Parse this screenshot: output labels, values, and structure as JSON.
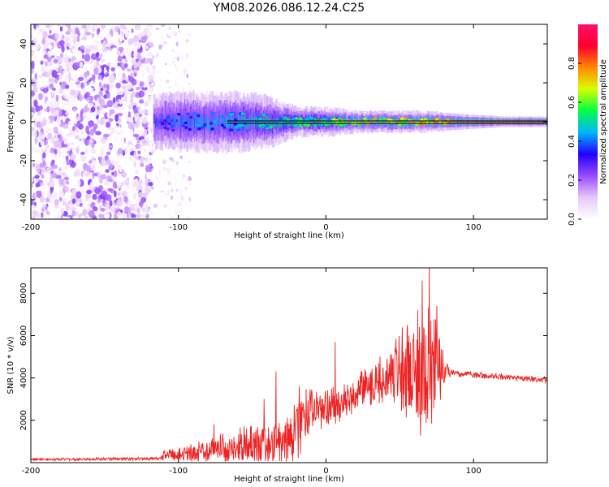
{
  "title": "YM08.2026.086.12.24.C25",
  "chart_data": [
    {
      "type": "heatmap",
      "name": "spectrogram",
      "xlabel": "Height of straight line (km)",
      "ylabel": "Frequency (Hz)",
      "xlim": [
        -200,
        150
      ],
      "ylim": [
        -50,
        50
      ],
      "xticks": [
        -200,
        -100,
        0,
        100
      ],
      "yticks": [
        -40,
        -20,
        0,
        20,
        40
      ],
      "noise_region_x": [
        -200,
        -118
      ],
      "sparse_noise_x": [
        -118,
        -92
      ],
      "signal_start_x": -117,
      "zero_line_y": 0,
      "signal_band": {
        "x": [
          -117,
          -100,
          -80,
          -60,
          -40,
          -20,
          0,
          20,
          40,
          60,
          80,
          100,
          120,
          150
        ],
        "halfwidth_hz": [
          7,
          8,
          8,
          8,
          7,
          4,
          4,
          3,
          3,
          3,
          2.5,
          2,
          1.5,
          1.5
        ],
        "peak_amplitude": [
          0.35,
          0.4,
          0.42,
          0.45,
          0.5,
          0.55,
          0.6,
          0.7,
          0.72,
          0.75,
          0.8,
          0.85,
          0.9,
          0.92
        ]
      },
      "colorbar": {
        "label": "Normalized spectral amplitude",
        "range": [
          0,
          1
        ],
        "ticks": [
          "0.0",
          "0.2",
          "0.4",
          "0.6",
          "0.8"
        ],
        "tick_values": [
          0,
          0.2,
          0.4,
          0.6,
          0.8
        ],
        "colors": [
          "#ffffff",
          "#e6c8fa",
          "#9a4cff",
          "#2200ff",
          "#00b4ff",
          "#00ff44",
          "#d8ff00",
          "#ff8800",
          "#ff0030",
          "#ff1166"
        ]
      }
    },
    {
      "type": "line",
      "name": "snr",
      "xlabel": "Height of straight line (km)",
      "ylabel": "SNR (10 * v/v)",
      "xlim": [
        -200,
        150
      ],
      "ylim": [
        0,
        9200
      ],
      "xticks": [
        -200,
        -100,
        0,
        100
      ],
      "yticks": [
        2000,
        4000,
        6000,
        8000
      ],
      "color": "#ee2222",
      "envelope": {
        "x": [
          -200,
          -150,
          -112,
          -110,
          -100,
          -80,
          -60,
          -40,
          -30,
          -20,
          -15,
          -10,
          -5,
          0,
          10,
          20,
          30,
          40,
          50,
          60,
          65,
          70,
          75,
          80,
          85,
          100,
          120,
          150
        ],
        "base": [
          150,
          170,
          190,
          350,
          350,
          550,
          750,
          900,
          1000,
          1400,
          2200,
          2400,
          2400,
          2600,
          2800,
          3200,
          3700,
          4100,
          4300,
          4300,
          4300,
          4300,
          4300,
          4300,
          4250,
          4150,
          4050,
          3900
        ],
        "amp": [
          60,
          70,
          90,
          250,
          350,
          600,
          900,
          1100,
          1400,
          1600,
          1500,
          1300,
          1100,
          900,
          900,
          900,
          1000,
          1400,
          2000,
          2800,
          3500,
          3200,
          2500,
          800,
          180,
          150,
          150,
          150
        ]
      },
      "peaks": [
        {
          "x": -76,
          "y": 1800
        },
        {
          "x": -42,
          "y": 3000
        },
        {
          "x": -34,
          "y": 4300
        },
        {
          "x": -18,
          "y": 3600
        },
        {
          "x": 6,
          "y": 5700
        },
        {
          "x": 55,
          "y": 6500
        },
        {
          "x": 62,
          "y": 7200
        },
        {
          "x": 65,
          "y": 8600
        },
        {
          "x": 70,
          "y": 9200
        },
        {
          "x": 75,
          "y": 7400
        }
      ]
    }
  ]
}
